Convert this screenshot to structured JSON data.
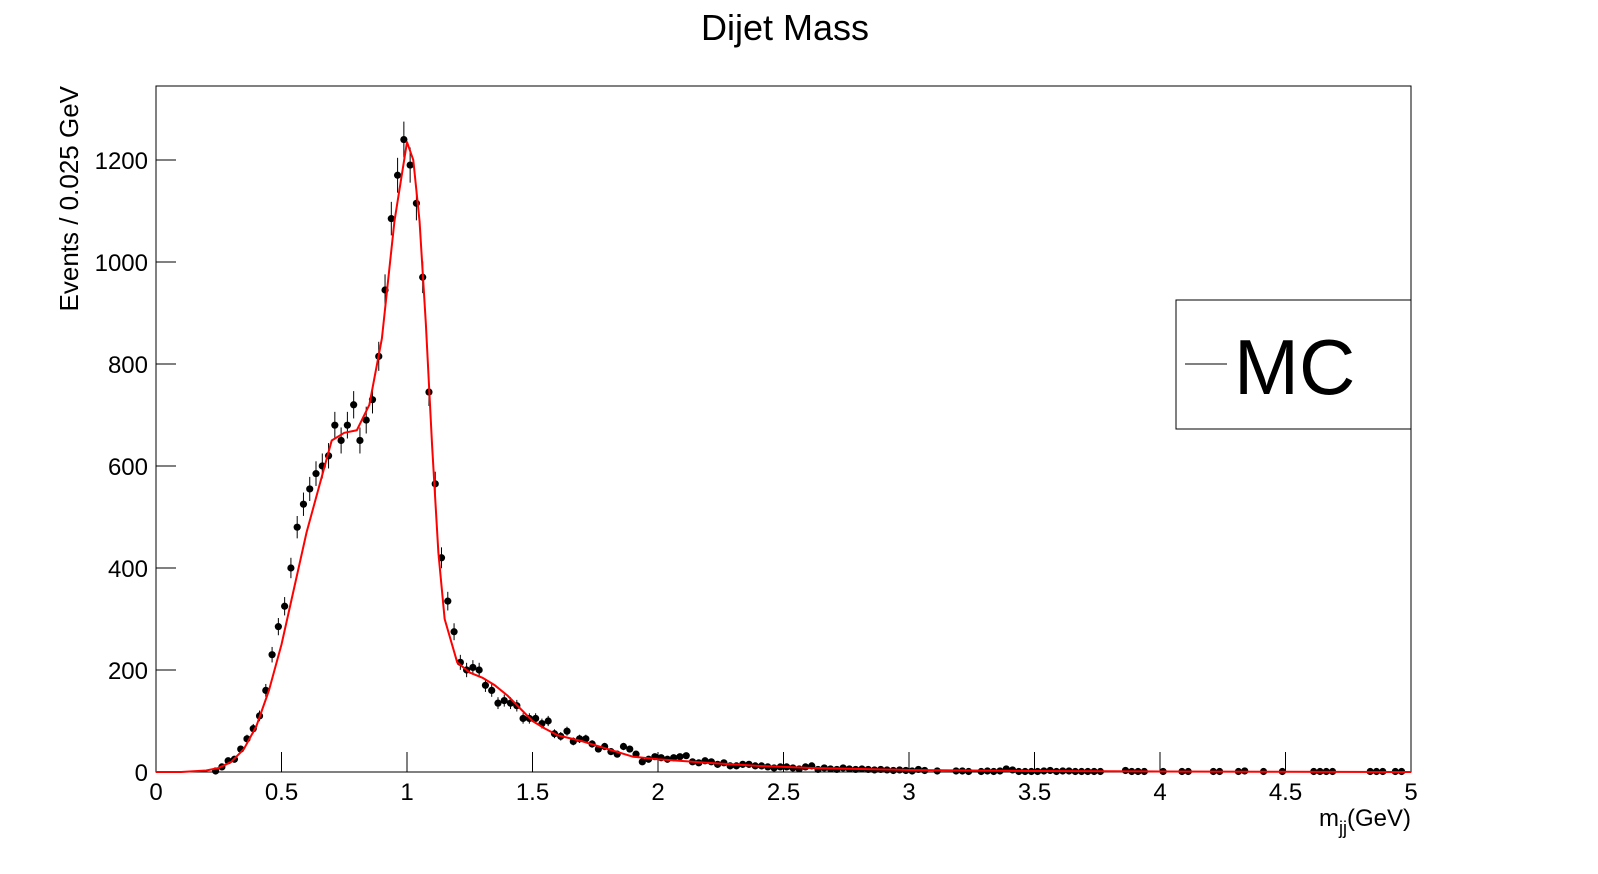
{
  "chart_data": {
    "type": "scatter",
    "title": "Dijet Mass",
    "y_label": "Events / 0.025 GeV",
    "x_label": {
      "base": "m",
      "sub": "jj",
      "unit": "(GeV)"
    },
    "xlim": [
      0,
      5
    ],
    "xticks": [
      0,
      0.5,
      1,
      1.5,
      2,
      2.5,
      3,
      3.5,
      4,
      4.5,
      5
    ],
    "ylim": [
      0,
      1345
    ],
    "yticks": [
      0,
      200,
      400,
      600,
      800,
      1000,
      1200
    ],
    "legend": "right",
    "series": [
      {
        "type": "errorbar",
        "color": "#000000",
        "x": [
          0.2375,
          0.2625,
          0.2875,
          0.3125,
          0.3375,
          0.3625,
          0.3875,
          0.4125,
          0.4375,
          0.4625,
          0.4875,
          0.5125,
          0.5375,
          0.5625,
          0.5875,
          0.6125,
          0.6375,
          0.6625,
          0.6875,
          0.7125,
          0.7375,
          0.7625,
          0.7875,
          0.8125,
          0.8375,
          0.8625,
          0.8875,
          0.9125,
          0.9375,
          0.9625,
          0.9875,
          1.0125,
          1.0375,
          1.0625,
          1.0875,
          1.1125,
          1.1375,
          1.1625,
          1.1875,
          1.2125,
          1.2375,
          1.2625,
          1.2875,
          1.3125,
          1.3375,
          1.3625,
          1.3875,
          1.4125,
          1.4375,
          1.4625,
          1.4875,
          1.5125,
          1.5375,
          1.5625,
          1.5875,
          1.6125,
          1.6375,
          1.6625,
          1.6875,
          1.7125,
          1.7375,
          1.7625,
          1.7875,
          1.8125,
          1.8375,
          1.8625,
          1.8875,
          1.9125,
          1.9375,
          1.9625,
          1.9875,
          2.0125,
          2.0375,
          2.0625,
          2.0875,
          2.1125,
          2.1375,
          2.1625,
          2.1875,
          2.2125,
          2.2375,
          2.2625,
          2.2875,
          2.3125,
          2.3375,
          2.3625,
          2.3875,
          2.4125,
          2.4375,
          2.4625,
          2.4875,
          2.5125,
          2.5375,
          2.5625,
          2.5875,
          2.6125,
          2.6375,
          2.6625,
          2.6875,
          2.7125,
          2.7375,
          2.7625,
          2.7875,
          2.8125,
          2.8375,
          2.8625,
          2.8875,
          2.9125,
          2.9375,
          2.9625,
          2.9875,
          3.0125,
          3.0375,
          3.0625,
          3.1125,
          3.1875,
          3.2125,
          3.2375,
          3.2875,
          3.3125,
          3.3375,
          3.3625,
          3.3875,
          3.4125,
          3.4375,
          3.4625,
          3.4875,
          3.5125,
          3.5375,
          3.5625,
          3.5875,
          3.6125,
          3.6375,
          3.6625,
          3.6875,
          3.7125,
          3.7375,
          3.7625,
          3.8625,
          3.8875,
          3.9125,
          3.9375,
          4.0125,
          4.0875,
          4.1125,
          4.2125,
          4.2375,
          4.3125,
          4.3375,
          4.4125,
          4.4875,
          4.6125,
          4.6375,
          4.6625,
          4.6875,
          4.8375,
          4.8625,
          4.8875,
          4.9375,
          4.9625
        ],
        "values": [
          2,
          10,
          22,
          25,
          45,
          65,
          85,
          110,
          160,
          230,
          285,
          325,
          400,
          480,
          525,
          555,
          585,
          600,
          620,
          680,
          650,
          680,
          720,
          650,
          690,
          730,
          815,
          945,
          1085,
          1170,
          1240,
          1190,
          1115,
          970,
          745,
          565,
          420,
          335,
          275,
          215,
          200,
          205,
          200,
          170,
          160,
          135,
          140,
          135,
          130,
          105,
          105,
          105,
          95,
          100,
          75,
          70,
          80,
          60,
          65,
          65,
          55,
          45,
          50,
          40,
          35,
          50,
          45,
          35,
          20,
          25,
          30,
          28,
          25,
          28,
          30,
          32,
          20,
          18,
          22,
          20,
          15,
          18,
          12,
          12,
          15,
          15,
          12,
          12,
          10,
          8,
          10,
          10,
          8,
          6,
          10,
          12,
          5,
          8,
          6,
          5,
          8,
          6,
          5,
          6,
          5,
          4,
          5,
          4,
          3,
          4,
          3,
          2,
          5,
          3,
          2,
          2,
          2,
          1,
          1,
          2,
          1,
          2,
          6,
          4,
          1,
          1,
          1,
          1,
          2,
          3,
          1,
          2,
          2,
          1,
          1,
          1,
          1,
          1,
          3,
          1,
          1,
          1,
          1,
          1,
          1,
          1,
          1,
          1,
          2,
          1,
          1,
          1,
          1,
          1,
          1,
          1,
          1,
          1,
          1,
          1
        ],
        "errors": [
          1.4,
          3.2,
          4.7,
          5,
          6.7,
          8.1,
          9.2,
          10.5,
          12.6,
          15.2,
          16.9,
          18,
          20,
          21.9,
          22.9,
          23.6,
          24.2,
          24.5,
          24.9,
          26.1,
          25.5,
          26.1,
          26.8,
          25.5,
          26.3,
          27,
          28.5,
          30.7,
          32.9,
          34.2,
          35.2,
          34.5,
          33.4,
          31.1,
          27.3,
          23.8,
          20.5,
          18.3,
          16.6,
          14.7,
          14.1,
          14.3,
          14.1,
          13,
          12.6,
          11.6,
          11.8,
          11.6,
          11.4,
          10.2,
          10.2,
          10.2,
          9.7,
          10,
          8.7,
          8.4,
          8.9,
          7.7,
          8.1,
          8.1,
          7.4,
          6.7,
          7.1,
          6.3,
          5.9,
          7.1,
          6.7,
          5.9,
          4.5,
          5,
          5.5,
          5.3,
          5,
          5.3,
          5.5,
          5.7,
          4.5,
          4.2,
          4.7,
          4.5,
          3.9,
          4.2,
          3.5,
          3.5,
          3.9,
          3.9,
          3.5,
          3.5,
          3.2,
          2.8,
          3.2,
          3.2,
          2.8,
          2.4,
          3.2,
          3.5,
          2.2,
          2.8,
          2.4,
          2.2,
          2.8,
          2.4,
          2.2,
          2.4,
          2.2,
          2,
          2.2,
          2,
          1.7,
          2,
          1.7,
          1.4,
          2.2,
          1.7,
          1.4,
          1.4,
          1.4,
          1,
          1,
          1.4,
          1,
          1.4,
          2.4,
          2,
          1,
          1,
          1,
          1,
          1.4,
          1.7,
          1,
          1.4,
          1.4,
          1,
          1,
          1,
          1,
          1,
          1.7,
          1,
          1,
          1,
          1,
          1,
          1,
          1,
          1,
          1,
          1.4,
          1,
          1,
          1,
          1,
          1,
          1,
          1,
          1,
          1,
          1,
          1
        ]
      },
      {
        "type": "line",
        "name": "MC",
        "color": "#ff0000",
        "x": [
          0,
          0.1,
          0.2,
          0.25,
          0.3,
          0.35,
          0.4,
          0.45,
          0.5,
          0.55,
          0.6,
          0.65,
          0.7,
          0.75,
          0.8,
          0.85,
          0.9,
          0.95,
          1.0,
          1.025,
          1.05,
          1.075,
          1.1,
          1.125,
          1.15,
          1.2,
          1.25,
          1.3,
          1.35,
          1.4,
          1.45,
          1.5,
          1.55,
          1.6,
          1.7,
          1.8,
          1.9,
          2.0,
          2.2,
          2.4,
          2.6,
          3.0,
          3.5,
          4.0,
          4.5,
          5.0
        ],
        "values": [
          0,
          0,
          3,
          8,
          20,
          45,
          90,
          160,
          250,
          360,
          470,
          560,
          650,
          665,
          670,
          720,
          850,
          1080,
          1235,
          1200,
          1080,
          880,
          640,
          430,
          300,
          215,
          195,
          185,
          170,
          150,
          125,
          100,
          85,
          72,
          60,
          45,
          30,
          25,
          18,
          12,
          8,
          4,
          2,
          1,
          0.5,
          0
        ]
      }
    ]
  }
}
